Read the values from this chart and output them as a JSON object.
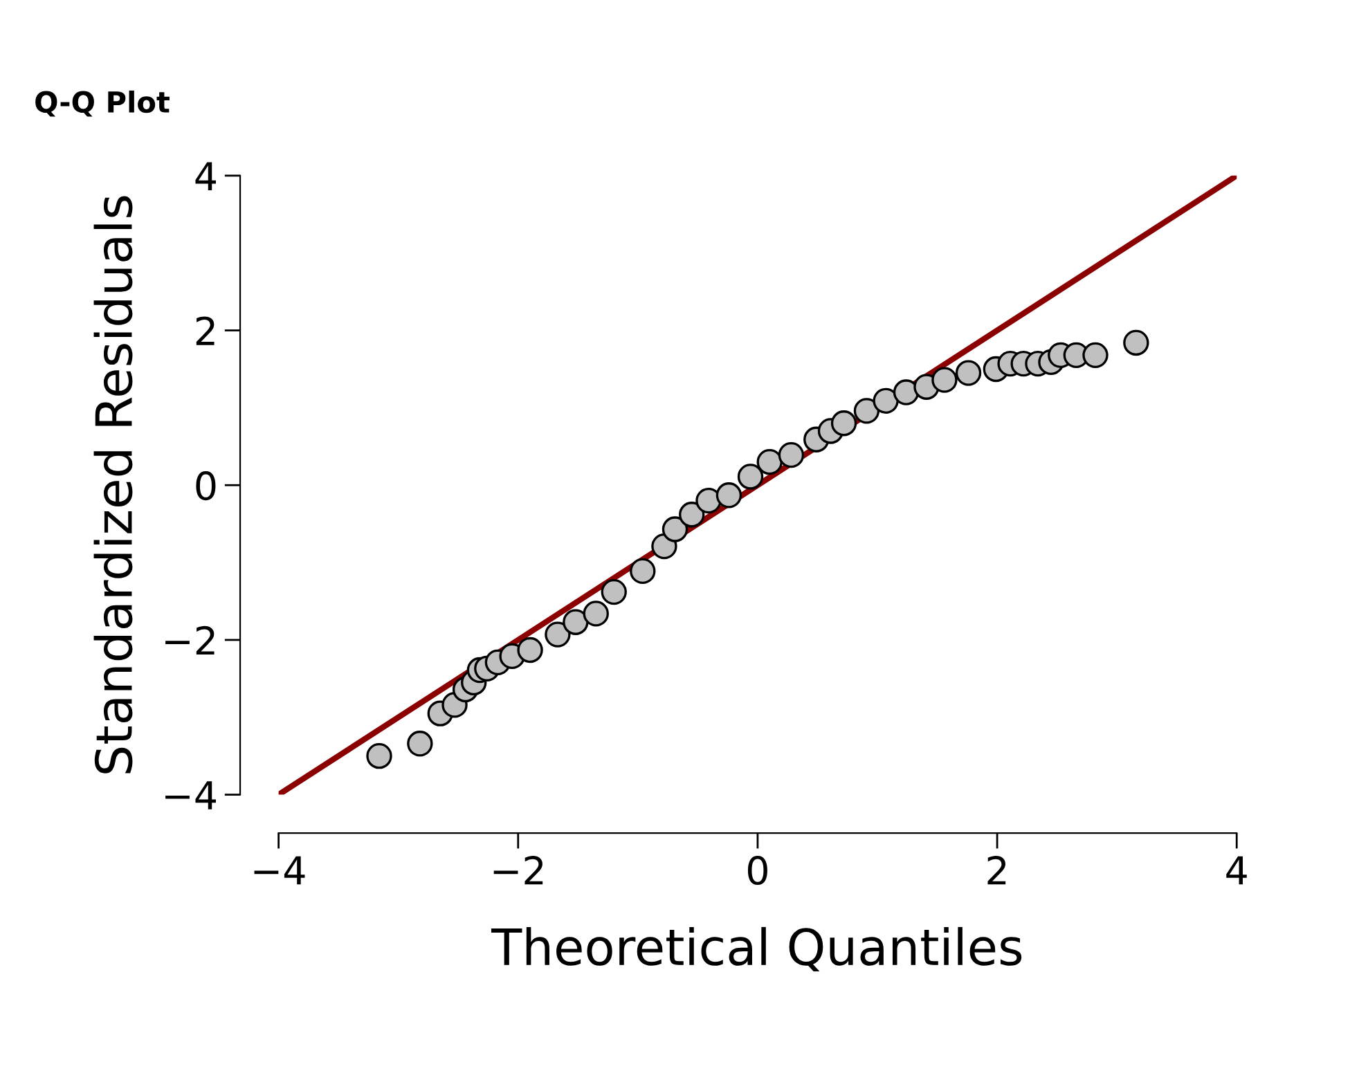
{
  "chart_data": {
    "type": "scatter",
    "title": "Q-Q Plot",
    "xlabel": "Theoretical Quantiles",
    "ylabel": "Standardized Residuals",
    "xlim": [
      -4,
      4
    ],
    "ylim": [
      -4,
      4
    ],
    "xticks": [
      -4,
      -2,
      0,
      2,
      4
    ],
    "yticks": [
      -4,
      -2,
      0,
      2,
      4
    ],
    "grid": false,
    "legend": false,
    "series": [
      {
        "color": "#c0c0c0",
        "marker": "circle",
        "x": [
          -3.16,
          -2.82,
          -2.65,
          -2.53,
          -2.44,
          -2.37,
          -2.32,
          -2.26,
          -2.17,
          -2.05,
          -1.9,
          -1.67,
          -1.52,
          -1.35,
          -1.2,
          -0.96,
          -0.78,
          -0.69,
          -0.55,
          -0.41,
          -0.24,
          -0.06,
          0.1,
          0.28,
          0.49,
          0.61,
          0.72,
          0.91,
          1.07,
          1.24,
          1.41,
          1.56,
          1.76,
          1.99,
          2.11,
          2.22,
          2.34,
          2.45,
          2.53,
          2.66,
          2.82,
          3.16
        ],
        "values": [
          -3.5,
          -3.34,
          -2.95,
          -2.84,
          -2.64,
          -2.55,
          -2.39,
          -2.37,
          -2.29,
          -2.21,
          -2.13,
          -1.93,
          -1.77,
          -1.66,
          -1.38,
          -1.11,
          -0.79,
          -0.57,
          -0.38,
          -0.2,
          -0.13,
          0.11,
          0.3,
          0.39,
          0.59,
          0.7,
          0.8,
          0.96,
          1.09,
          1.2,
          1.27,
          1.36,
          1.45,
          1.5,
          1.57,
          1.57,
          1.57,
          1.59,
          1.68,
          1.68,
          1.68,
          1.84
        ]
      },
      {
        "type": "line",
        "color": "#8b0000",
        "line_style": "solid",
        "x": [
          -4,
          4
        ],
        "values": [
          -4,
          4
        ]
      }
    ]
  }
}
